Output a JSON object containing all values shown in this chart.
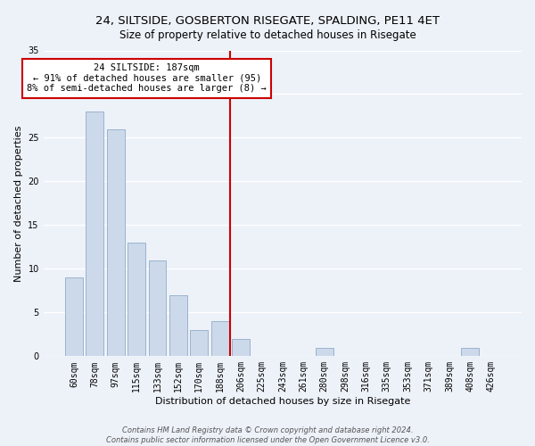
{
  "title": "24, SILTSIDE, GOSBERTON RISEGATE, SPALDING, PE11 4ET",
  "subtitle": "Size of property relative to detached houses in Risegate",
  "xlabel": "Distribution of detached houses by size in Risegate",
  "ylabel": "Number of detached properties",
  "bar_labels": [
    "60sqm",
    "78sqm",
    "97sqm",
    "115sqm",
    "133sqm",
    "152sqm",
    "170sqm",
    "188sqm",
    "206sqm",
    "225sqm",
    "243sqm",
    "261sqm",
    "280sqm",
    "298sqm",
    "316sqm",
    "335sqm",
    "353sqm",
    "371sqm",
    "389sqm",
    "408sqm",
    "426sqm"
  ],
  "bar_values": [
    9,
    28,
    26,
    13,
    11,
    7,
    3,
    4,
    2,
    0,
    0,
    0,
    1,
    0,
    0,
    0,
    0,
    0,
    0,
    1,
    0
  ],
  "bar_color": "#ccd9ea",
  "bar_edge_color": "#9ab3cc",
  "ylim": [
    0,
    35
  ],
  "yticks": [
    0,
    5,
    10,
    15,
    20,
    25,
    30,
    35
  ],
  "vline_x": 7.5,
  "vline_color": "#cc0000",
  "annotation_title": "24 SILTSIDE: 187sqm",
  "annotation_line1": "← 91% of detached houses are smaller (95)",
  "annotation_line2": "8% of semi-detached houses are larger (8) →",
  "footer_line1": "Contains HM Land Registry data © Crown copyright and database right 2024.",
  "footer_line2": "Contains public sector information licensed under the Open Government Licence v3.0.",
  "bg_color": "#edf2f9",
  "plot_bg_color": "#edf2f9",
  "grid_color": "#ffffff",
  "title_fontsize": 9.5,
  "subtitle_fontsize": 8.5,
  "axis_label_fontsize": 8,
  "tick_fontsize": 7,
  "ann_fontsize": 7.5,
  "footer_fontsize": 6
}
